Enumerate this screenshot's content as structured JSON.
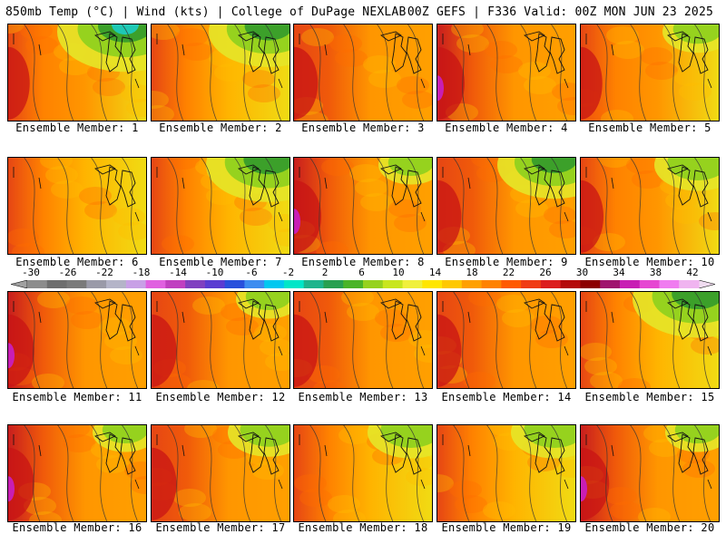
{
  "header": {
    "title_left": "850mb Temp (°C) | Wind (kts) | College of DuPage NEXLAB",
    "title_right": "00Z GEFS | F336 Valid: 00Z MON JUN 23 2025"
  },
  "panels": [
    {
      "label": "Ensemble Member: 1",
      "warm": 0.55,
      "cool": 0.75
    },
    {
      "label": "Ensemble Member: 2",
      "warm": 0.45,
      "cool": 0.6
    },
    {
      "label": "Ensemble Member: 3",
      "warm": 0.65,
      "cool": 0.05
    },
    {
      "label": "Ensemble Member: 4",
      "warm": 0.8,
      "cool": 0.05
    },
    {
      "label": "Ensemble Member: 5",
      "warm": 0.55,
      "cool": 0.15
    },
    {
      "label": "Ensemble Member: 6",
      "warm": 0.5,
      "cool": 0.05
    },
    {
      "label": "Ensemble Member: 7",
      "warm": 0.4,
      "cool": 0.65
    },
    {
      "label": "Ensemble Member: 8",
      "warm": 0.8,
      "cool": 0.1
    },
    {
      "label": "Ensemble Member: 9",
      "warm": 0.65,
      "cool": 0.55
    },
    {
      "label": "Ensemble Member: 10",
      "warm": 0.6,
      "cool": 0.3
    },
    {
      "label": "Ensemble Member: 11",
      "warm": 0.75,
      "cool": 0.05
    },
    {
      "label": "Ensemble Member: 12",
      "warm": 0.7,
      "cool": 0.1
    },
    {
      "label": "Ensemble Member: 13",
      "warm": 0.65,
      "cool": 0.05
    },
    {
      "label": "Ensemble Member: 14",
      "warm": 0.65,
      "cool": 0.0
    },
    {
      "label": "Ensemble Member: 15",
      "warm": 0.5,
      "cool": 0.7
    },
    {
      "label": "Ensemble Member: 16",
      "warm": 0.75,
      "cool": 0.1
    },
    {
      "label": "Ensemble Member: 17",
      "warm": 0.7,
      "cool": 0.25
    },
    {
      "label": "Ensemble Member: 18",
      "warm": 0.45,
      "cool": 0.3
    },
    {
      "label": "Ensemble Member: 19",
      "warm": 0.5,
      "cool": 0.3
    },
    {
      "label": "Ensemble Member: 20",
      "warm": 0.85,
      "cool": 0.1
    }
  ],
  "legend": {
    "ticks": [
      "-30",
      "-26",
      "-22",
      "-18",
      "-14",
      "-10",
      "-6",
      "-2",
      "2",
      "6",
      "10",
      "14",
      "18",
      "22",
      "26",
      "30",
      "34",
      "38",
      "42"
    ],
    "colors": [
      "#8c8c8c",
      "#6e6e6e",
      "#7a7a7a",
      "#9a9aa8",
      "#b4b4c8",
      "#c8a0e6",
      "#e060e0",
      "#c040c0",
      "#8040c0",
      "#5a3cd2",
      "#2850dc",
      "#3c8cf0",
      "#00c8f0",
      "#00e6c8",
      "#1eb48c",
      "#28a050",
      "#4ab428",
      "#96d21e",
      "#c8e61e",
      "#f0f03c",
      "#ffe600",
      "#ffc800",
      "#ffa000",
      "#ff8200",
      "#ff5a00",
      "#f03c14",
      "#dc1e1e",
      "#b40a0a",
      "#8c0000",
      "#a0146e",
      "#c81eb4",
      "#e646d2",
      "#f07cf0",
      "#f0b4f0"
    ]
  }
}
